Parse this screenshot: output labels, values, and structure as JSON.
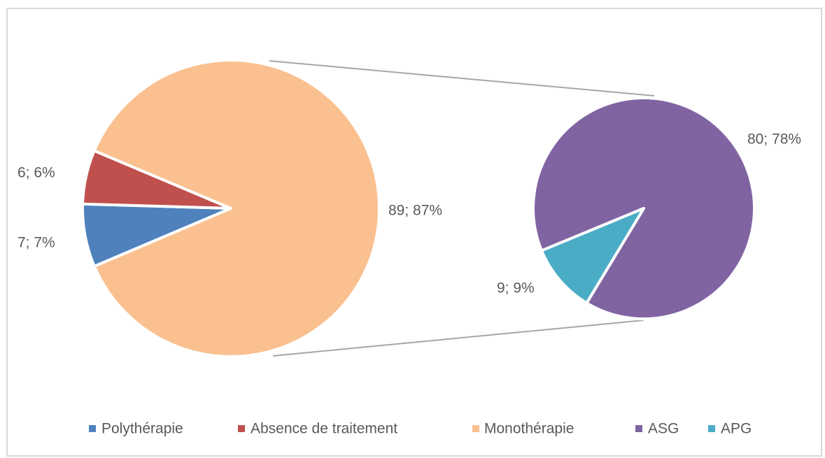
{
  "chart_data": [
    {
      "type": "pie",
      "categories": [
        "Polythérapie",
        "Absence de traitement",
        "Monothérapie"
      ],
      "values": [
        7,
        6,
        89
      ],
      "value_labels": [
        "7; 7%",
        "6; 6%",
        "89; 87%"
      ],
      "colors": [
        "#4f81bd",
        "#c0504d",
        "#fac090"
      ]
    },
    {
      "type": "pie",
      "categories": [
        "ASG",
        "APG"
      ],
      "values": [
        80,
        9
      ],
      "value_labels": [
        "80; 78%",
        "9; 9%"
      ],
      "colors": [
        "#8064a2",
        "#4bacc6"
      ]
    }
  ]
}
